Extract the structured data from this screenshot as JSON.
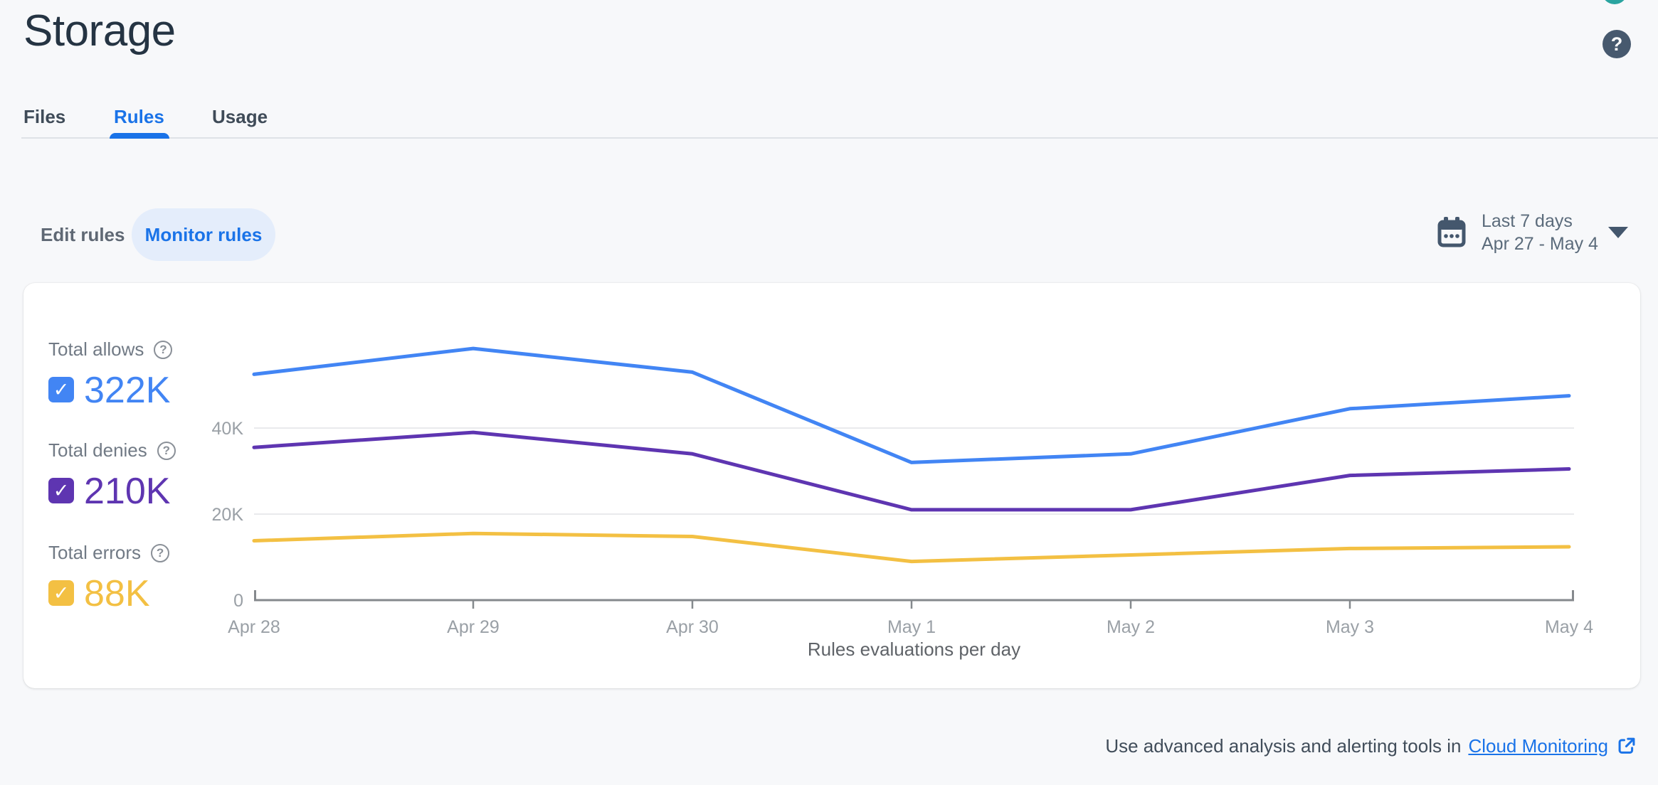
{
  "header": {
    "title": "Storage",
    "help_label": "?"
  },
  "tabs": [
    {
      "label": "Files",
      "active": false
    },
    {
      "label": "Rules",
      "active": true
    },
    {
      "label": "Usage",
      "active": false
    }
  ],
  "controls": {
    "edit_rules_label": "Edit rules",
    "monitor_rules_label": "Monitor rules",
    "date_range": {
      "preset": "Last 7 days",
      "range": "Apr 27 - May 4"
    }
  },
  "legend": [
    {
      "label": "Total allows",
      "value": "322K",
      "color": "#4285f4",
      "checked": true
    },
    {
      "label": "Total denies",
      "value": "210K",
      "color": "#5e35b1",
      "checked": true
    },
    {
      "label": "Total errors",
      "value": "88K",
      "color": "#f3c043",
      "checked": true
    }
  ],
  "chart_data": {
    "type": "line",
    "title": "Rules evaluations per day",
    "x": [
      "Apr 28",
      "Apr 29",
      "Apr 30",
      "May 1",
      "May 2",
      "May 3",
      "May 4"
    ],
    "series": [
      {
        "name": "Total allows",
        "color": "#4285f4",
        "values": [
          52500,
          58500,
          53000,
          32000,
          34000,
          44500,
          47500
        ]
      },
      {
        "name": "Total denies",
        "color": "#5e35b1",
        "values": [
          35500,
          39000,
          34000,
          21000,
          21000,
          29000,
          30500
        ]
      },
      {
        "name": "Total errors",
        "color": "#f3c043",
        "values": [
          13800,
          15500,
          14800,
          9000,
          10500,
          12000,
          12400
        ]
      }
    ],
    "y_ticks": [
      "0",
      "20K",
      "40K"
    ],
    "y_tick_values": [
      0,
      20000,
      40000
    ],
    "ylim": [
      0,
      66000
    ],
    "grid": "horizontal",
    "legend_position": "left",
    "axis_color": "#85898d",
    "grid_color": "#e9eaec",
    "tick_label_color": "#9aa0a6",
    "title_color": "#5f6368"
  },
  "footer": {
    "text": "Use advanced analysis and alerting tools in",
    "link_label": "Cloud Monitoring"
  }
}
